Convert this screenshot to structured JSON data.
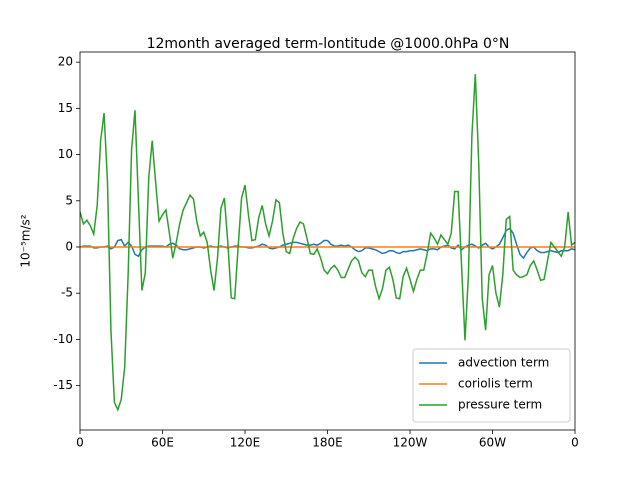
{
  "chart_data": {
    "type": "line",
    "title": "12month averaged term-lontitude @1000.0hPa 0°N",
    "ylabel": "10⁻⁵m/s²",
    "xlim": [
      0,
      360
    ],
    "ylim": [
      -19.8,
      21.1
    ],
    "xticks": [
      0,
      {
        "value": 60,
        "label": "60E"
      },
      {
        "value": 120,
        "label": "120E"
      },
      {
        "value": 180,
        "label": "180E"
      },
      {
        "value": 240,
        "label": "120W"
      },
      {
        "value": 300,
        "label": "60W"
      },
      {
        "value": 360,
        "label": "0"
      }
    ],
    "yticks": [
      -15,
      -10,
      -5,
      0,
      5,
      10,
      15,
      20
    ],
    "legend": "lower right",
    "x": [
      0,
      2.5,
      5,
      7.5,
      10,
      12.5,
      15,
      17.5,
      20,
      22.5,
      25,
      27.5,
      30,
      32.5,
      35,
      37.5,
      40,
      42.5,
      45,
      47.5,
      50,
      52.5,
      55,
      57.5,
      60,
      62.5,
      65,
      67.5,
      70,
      72.5,
      75,
      77.5,
      80,
      82.5,
      85,
      87.5,
      90,
      92.5,
      95,
      97.5,
      100,
      102.5,
      105,
      107.5,
      110,
      112.5,
      115,
      117.5,
      120,
      122.5,
      125,
      127.5,
      130,
      132.5,
      135,
      137.5,
      140,
      142.5,
      145,
      147.5,
      150,
      152.5,
      155,
      157.5,
      160,
      162.5,
      165,
      167.5,
      170,
      172.5,
      175,
      177.5,
      180,
      182.5,
      185,
      187.5,
      190,
      192.5,
      195,
      197.5,
      200,
      202.5,
      205,
      207.5,
      210,
      212.5,
      215,
      217.5,
      220,
      222.5,
      225,
      227.5,
      230,
      232.5,
      235,
      237.5,
      240,
      242.5,
      245,
      247.5,
      250,
      252.5,
      255,
      257.5,
      260,
      262.5,
      265,
      267.5,
      270,
      272.5,
      275,
      277.5,
      280,
      282.5,
      285,
      287.5,
      290,
      292.5,
      295,
      297.5,
      300,
      302.5,
      305,
      307.5,
      310,
      312.5,
      315,
      317.5,
      320,
      322.5,
      325,
      327.5,
      330,
      332.5,
      335,
      337.5,
      340,
      342.5,
      345,
      347.5,
      350,
      352.5,
      355,
      357.5,
      360
    ],
    "series": [
      {
        "name": "advection term",
        "color": "#1f77b4",
        "values": [
          0,
          0.1,
          0.1,
          0.1,
          -0.1,
          -0.1,
          0,
          0,
          0.1,
          -0.2,
          0,
          0.7,
          0.8,
          0.1,
          0.5,
          0.1,
          -0.8,
          -1,
          -0.3,
          0,
          0.1,
          0.1,
          0.1,
          0.1,
          0.1,
          0,
          0.3,
          0.4,
          0.2,
          -0.2,
          -0.3,
          -0.3,
          -0.2,
          -0.1,
          0,
          0,
          -0.1,
          0,
          0.1,
          0,
          0,
          0.1,
          0,
          -0.1,
          0,
          0.1,
          0.1,
          0,
          0,
          -0.1,
          -0.1,
          0,
          0.1,
          0.3,
          0.2,
          -0.1,
          -0.2,
          -0.1,
          0,
          0.2,
          0.3,
          0.4,
          0.5,
          0.5,
          0.4,
          0.3,
          0.2,
          0.2,
          0.3,
          0.2,
          0.4,
          0.7,
          0.7,
          0.3,
          0.1,
          0.1,
          0.2,
          0.1,
          0.2,
          0,
          -0.3,
          -0.5,
          -0.4,
          -0.1,
          -0.1,
          -0.2,
          -0.3,
          -0.5,
          -0.7,
          -0.6,
          -0.4,
          -0.4,
          -0.6,
          -0.7,
          -0.5,
          -0.5,
          -0.4,
          -0.4,
          -0.3,
          -0.2,
          -0.3,
          -0.4,
          -0.2,
          -0.2,
          -0.3,
          0,
          0.1,
          0.2,
          -0.1,
          -0.2,
          0.2,
          -0.3,
          0,
          0.2,
          0.3,
          0.1,
          -0.1,
          0.2,
          0.4,
          0,
          -0.2,
          0,
          0.3,
          1,
          1.8,
          2,
          1.5,
          0.3,
          -0.8,
          -1.2,
          -0.6,
          -0.1,
          0,
          -0.4,
          -0.6,
          -0.6,
          -0.5,
          -0.4,
          -0.5,
          -0.6,
          -0.4,
          -0.4,
          -0.4,
          -0.2,
          -0.3
        ]
      },
      {
        "name": "coriolis term",
        "color": "#ff7f0e",
        "values": [
          0,
          0,
          0,
          0,
          0,
          0,
          0,
          0,
          0,
          0,
          0,
          0,
          0,
          0,
          0,
          0,
          0,
          0,
          0,
          0,
          0,
          0,
          0,
          0,
          0,
          0,
          0,
          0,
          0,
          0,
          0,
          0,
          0,
          0,
          0,
          0,
          0,
          0,
          0,
          0,
          0,
          0,
          0,
          0,
          0,
          0,
          0,
          0,
          0,
          0,
          0,
          0,
          0,
          0,
          0,
          0,
          0,
          0,
          0,
          0,
          0,
          0,
          0,
          0,
          0,
          0,
          0,
          0,
          0,
          0,
          0,
          0,
          0,
          0,
          0,
          0,
          0,
          0,
          0,
          0,
          0,
          0,
          0,
          0,
          0,
          0,
          0,
          0,
          0,
          0,
          0,
          0,
          0,
          0,
          0,
          0,
          0,
          0,
          0,
          0,
          0,
          0,
          0,
          0,
          0,
          0,
          0,
          0,
          0,
          0,
          0,
          0,
          0,
          0,
          0,
          0,
          0,
          0,
          0,
          0,
          0,
          0,
          0,
          0,
          0,
          0,
          0,
          0,
          0,
          0,
          0,
          0,
          0,
          0,
          0,
          0,
          0,
          0,
          0,
          0,
          0,
          0,
          0,
          0,
          0
        ]
      },
      {
        "name": "pressure term",
        "color": "#2ca02c",
        "values": [
          3.8,
          2.5,
          2.9,
          2.3,
          1.4,
          4.5,
          11.5,
          14.5,
          7,
          -9,
          -16.8,
          -17.6,
          -16.5,
          -13,
          -3,
          10.5,
          14.8,
          5,
          -4.7,
          -2.8,
          7.5,
          11.5,
          7,
          2.8,
          3.5,
          4,
          1.5,
          -1.2,
          0.5,
          2.5,
          4,
          4.8,
          5.6,
          5.2,
          2.7,
          1.2,
          1.6,
          0.5,
          -2.5,
          -4.7,
          -1.2,
          4.2,
          5.3,
          0.5,
          -5.5,
          -5.6,
          0,
          5.3,
          6.7,
          3.5,
          0.7,
          0.8,
          3.2,
          4.5,
          2.5,
          1.2,
          2.8,
          5.1,
          4.8,
          1.5,
          -0.5,
          -0.7,
          0.9,
          2,
          2.7,
          2.5,
          1,
          -0.7,
          -0.8,
          -0.2,
          -1.2,
          -2.5,
          -2.9,
          -2.3,
          -2,
          -2.5,
          -3.3,
          -3.3,
          -2.4,
          -1.5,
          -1.1,
          -1.5,
          -2.8,
          -3.2,
          -2.5,
          -2.5,
          -4.3,
          -5.6,
          -4.5,
          -2.5,
          -2.2,
          -3.5,
          -5.5,
          -5.6,
          -3.2,
          -2.3,
          -3.5,
          -4.8,
          -3.5,
          -2.5,
          -2.5,
          -0.7,
          1.5,
          1,
          0.3,
          1.3,
          0.8,
          0.3,
          1.5,
          6,
          6,
          -2,
          -10.1,
          -3,
          12,
          18.7,
          9,
          -5.5,
          -9,
          -3,
          -2,
          -5,
          -6.5,
          -3,
          3,
          3.3,
          -2.5,
          -3,
          -3.3,
          -3.2,
          -3,
          -2,
          -1.5,
          -2.5,
          -3.6,
          -3.5,
          -1.5,
          0.5,
          0,
          -0.5,
          -1,
          0,
          3.8,
          0.2,
          0.5
        ]
      }
    ]
  }
}
